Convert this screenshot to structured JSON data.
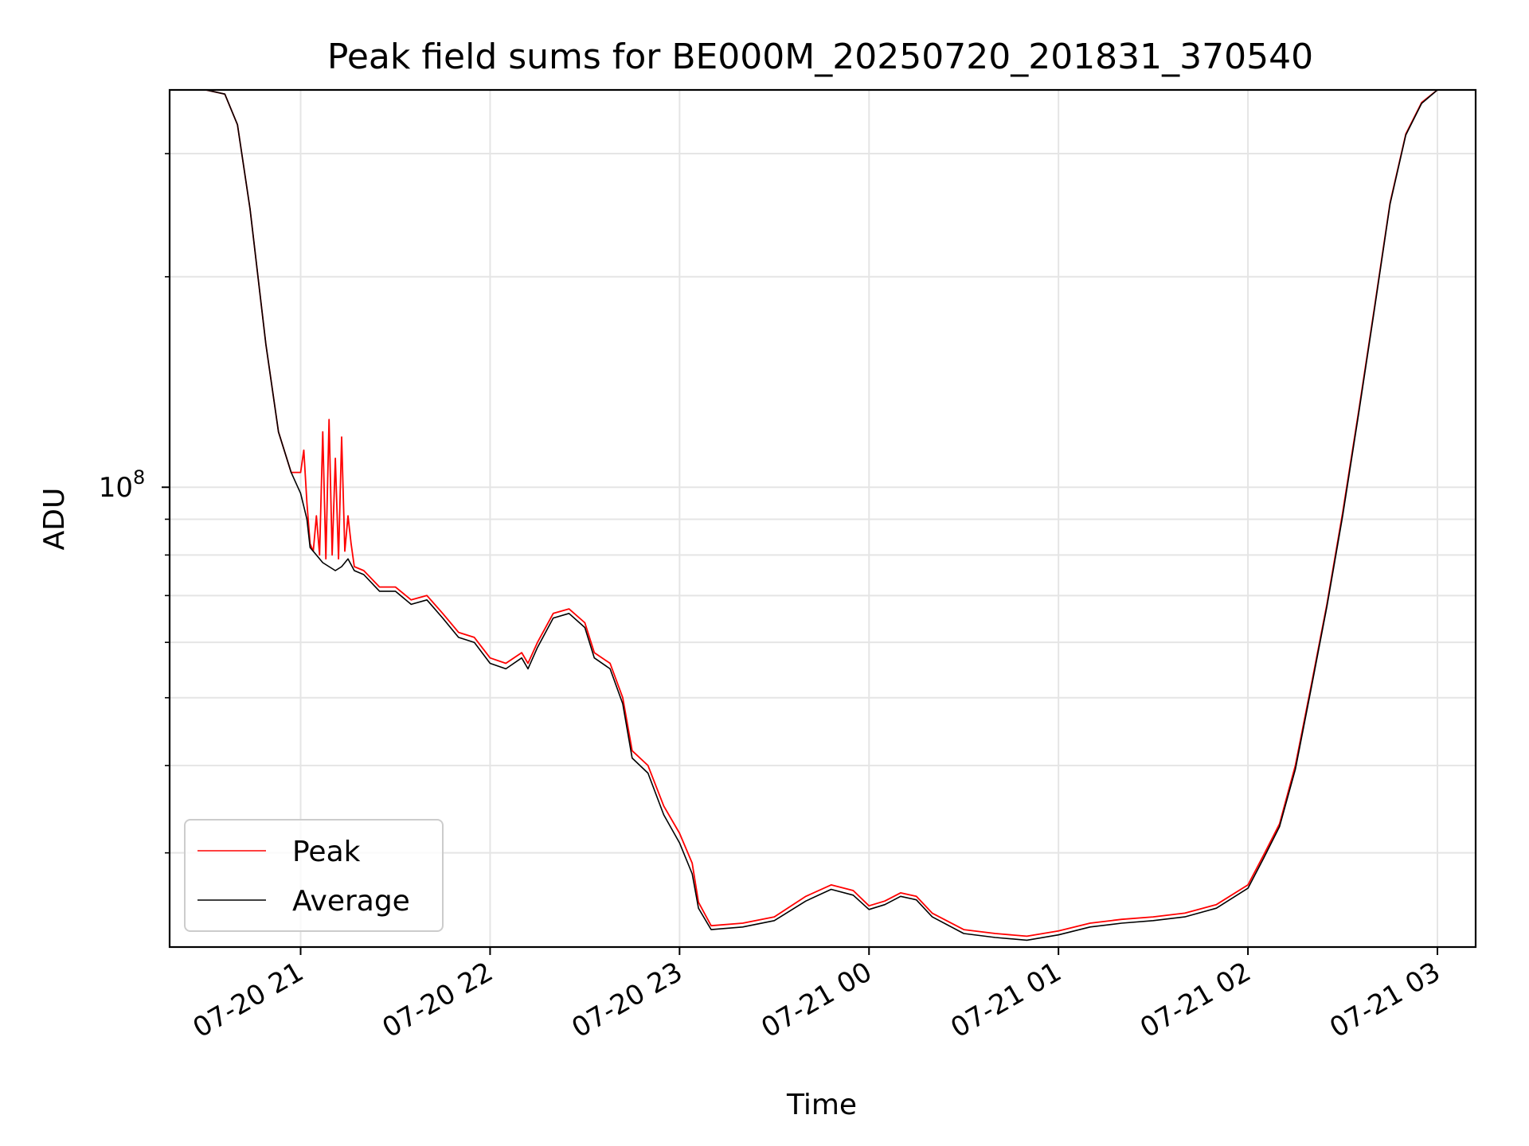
{
  "chart_data": {
    "type": "line",
    "title": "Peak field sums for BE000M_20250720_201831_370540",
    "xlabel": "Time",
    "ylabel": "ADU",
    "y_scale": "log",
    "ylim": [
      22000000,
      370000000
    ],
    "xlim": [
      "2025-07-20 20:18:31",
      "2025-07-21 03:00:00"
    ],
    "grid": true,
    "legend_position": "lower-left",
    "x_ticks": [
      {
        "t": "2025-07-20 21:00",
        "label": "07-20 21"
      },
      {
        "t": "2025-07-20 22:00",
        "label": "07-20 22"
      },
      {
        "t": "2025-07-20 23:00",
        "label": "07-20 23"
      },
      {
        "t": "2025-07-21 00:00",
        "label": "07-21 00"
      },
      {
        "t": "2025-07-21 01:00",
        "label": "07-21 01"
      },
      {
        "t": "2025-07-21 02:00",
        "label": "07-21 02"
      },
      {
        "t": "2025-07-21 03:00",
        "label": "07-21 03"
      }
    ],
    "y_major_ticks": [
      {
        "value": 100000000,
        "label_base": "10",
        "label_exp": "8"
      }
    ],
    "y_minor_ticks": [
      30000000,
      40000000,
      50000000,
      60000000,
      70000000,
      80000000,
      90000000,
      200000000,
      300000000
    ],
    "series": [
      {
        "name": "Peak",
        "color": "#ff0000",
        "points": [
          [
            "2025-07-20 20:18:31",
            370000000
          ],
          [
            "2025-07-20 20:30",
            370000000
          ],
          [
            "2025-07-20 20:36",
            365000000
          ],
          [
            "2025-07-20 20:40",
            330000000
          ],
          [
            "2025-07-20 20:44",
            250000000
          ],
          [
            "2025-07-20 20:49",
            160000000
          ],
          [
            "2025-07-20 20:53",
            120000000
          ],
          [
            "2025-07-20 20:57",
            105000000
          ],
          [
            "2025-07-20 21:00",
            105000000
          ],
          [
            "2025-07-20 21:01",
            113000000
          ],
          [
            "2025-07-20 21:02",
            95000000
          ],
          [
            "2025-07-20 21:03",
            83000000
          ],
          [
            "2025-07-20 21:04",
            81000000
          ],
          [
            "2025-07-20 21:05",
            91000000
          ],
          [
            "2025-07-20 21:06",
            80000000
          ],
          [
            "2025-07-20 21:07",
            120000000
          ],
          [
            "2025-07-20 21:08",
            79000000
          ],
          [
            "2025-07-20 21:09",
            125000000
          ],
          [
            "2025-07-20 21:10",
            80000000
          ],
          [
            "2025-07-20 21:11",
            110000000
          ],
          [
            "2025-07-20 21:12",
            79000000
          ],
          [
            "2025-07-20 21:13",
            118000000
          ],
          [
            "2025-07-20 21:14",
            81000000
          ],
          [
            "2025-07-20 21:15",
            91000000
          ],
          [
            "2025-07-20 21:16",
            83000000
          ],
          [
            "2025-07-20 21:17",
            77000000
          ],
          [
            "2025-07-20 21:20",
            76000000
          ],
          [
            "2025-07-20 21:25",
            72000000
          ],
          [
            "2025-07-20 21:30",
            72000000
          ],
          [
            "2025-07-20 21:35",
            69000000
          ],
          [
            "2025-07-20 21:40",
            70000000
          ],
          [
            "2025-07-20 21:45",
            66000000
          ],
          [
            "2025-07-20 21:50",
            62000000
          ],
          [
            "2025-07-20 21:55",
            61000000
          ],
          [
            "2025-07-20 22:00",
            57000000
          ],
          [
            "2025-07-20 22:05",
            56000000
          ],
          [
            "2025-07-20 22:10",
            58000000
          ],
          [
            "2025-07-20 22:12",
            56000000
          ],
          [
            "2025-07-20 22:15",
            60000000
          ],
          [
            "2025-07-20 22:20",
            66000000
          ],
          [
            "2025-07-20 22:25",
            67000000
          ],
          [
            "2025-07-20 22:30",
            64000000
          ],
          [
            "2025-07-20 22:33",
            58000000
          ],
          [
            "2025-07-20 22:38",
            56000000
          ],
          [
            "2025-07-20 22:42",
            50000000
          ],
          [
            "2025-07-20 22:45",
            42000000
          ],
          [
            "2025-07-20 22:50",
            40000000
          ],
          [
            "2025-07-20 22:55",
            35000000
          ],
          [
            "2025-07-20 23:00",
            32000000
          ],
          [
            "2025-07-20 23:04",
            29000000
          ],
          [
            "2025-07-20 23:06",
            25500000
          ],
          [
            "2025-07-20 23:10",
            23600000
          ],
          [
            "2025-07-20 23:20",
            23800000
          ],
          [
            "2025-07-20 23:30",
            24300000
          ],
          [
            "2025-07-20 23:40",
            26000000
          ],
          [
            "2025-07-20 23:48",
            27000000
          ],
          [
            "2025-07-20 23:55",
            26500000
          ],
          [
            "2025-07-21 00:00",
            25200000
          ],
          [
            "2025-07-21 00:05",
            25600000
          ],
          [
            "2025-07-21 00:10",
            26300000
          ],
          [
            "2025-07-21 00:15",
            26000000
          ],
          [
            "2025-07-21 00:20",
            24600000
          ],
          [
            "2025-07-21 00:30",
            23300000
          ],
          [
            "2025-07-21 00:40",
            23000000
          ],
          [
            "2025-07-21 00:50",
            22800000
          ],
          [
            "2025-07-21 01:00",
            23200000
          ],
          [
            "2025-07-21 01:10",
            23800000
          ],
          [
            "2025-07-21 01:20",
            24100000
          ],
          [
            "2025-07-21 01:30",
            24300000
          ],
          [
            "2025-07-21 01:40",
            24600000
          ],
          [
            "2025-07-21 01:50",
            25300000
          ],
          [
            "2025-07-21 02:00",
            27000000
          ],
          [
            "2025-07-21 02:05",
            29800000
          ],
          [
            "2025-07-21 02:10",
            33000000
          ],
          [
            "2025-07-21 02:15",
            40000000
          ],
          [
            "2025-07-21 02:20",
            52000000
          ],
          [
            "2025-07-21 02:25",
            68000000
          ],
          [
            "2025-07-21 02:30",
            92000000
          ],
          [
            "2025-07-21 02:35",
            128000000
          ],
          [
            "2025-07-21 02:40",
            180000000
          ],
          [
            "2025-07-21 02:45",
            255000000
          ],
          [
            "2025-07-21 02:50",
            320000000
          ],
          [
            "2025-07-21 02:55",
            355000000
          ],
          [
            "2025-07-21 03:00",
            370000000
          ]
        ]
      },
      {
        "name": "Average",
        "color": "#000000",
        "points": [
          [
            "2025-07-20 20:18:31",
            370000000
          ],
          [
            "2025-07-20 20:30",
            370000000
          ],
          [
            "2025-07-20 20:36",
            365000000
          ],
          [
            "2025-07-20 20:40",
            330000000
          ],
          [
            "2025-07-20 20:44",
            250000000
          ],
          [
            "2025-07-20 20:49",
            160000000
          ],
          [
            "2025-07-20 20:53",
            120000000
          ],
          [
            "2025-07-20 20:57",
            105000000
          ],
          [
            "2025-07-20 21:00",
            98000000
          ],
          [
            "2025-07-20 21:02",
            90000000
          ],
          [
            "2025-07-20 21:03",
            82000000
          ],
          [
            "2025-07-20 21:05",
            80000000
          ],
          [
            "2025-07-20 21:07",
            78000000
          ],
          [
            "2025-07-20 21:09",
            77000000
          ],
          [
            "2025-07-20 21:11",
            76000000
          ],
          [
            "2025-07-20 21:13",
            77000000
          ],
          [
            "2025-07-20 21:15",
            79000000
          ],
          [
            "2025-07-20 21:17",
            76000000
          ],
          [
            "2025-07-20 21:20",
            75000000
          ],
          [
            "2025-07-20 21:25",
            71000000
          ],
          [
            "2025-07-20 21:30",
            71000000
          ],
          [
            "2025-07-20 21:35",
            68000000
          ],
          [
            "2025-07-20 21:40",
            69000000
          ],
          [
            "2025-07-20 21:45",
            65000000
          ],
          [
            "2025-07-20 21:50",
            61000000
          ],
          [
            "2025-07-20 21:55",
            60000000
          ],
          [
            "2025-07-20 22:00",
            56000000
          ],
          [
            "2025-07-20 22:05",
            55000000
          ],
          [
            "2025-07-20 22:10",
            57000000
          ],
          [
            "2025-07-20 22:12",
            55000000
          ],
          [
            "2025-07-20 22:15",
            59000000
          ],
          [
            "2025-07-20 22:20",
            65000000
          ],
          [
            "2025-07-20 22:25",
            66000000
          ],
          [
            "2025-07-20 22:30",
            63000000
          ],
          [
            "2025-07-20 22:33",
            57000000
          ],
          [
            "2025-07-20 22:38",
            55000000
          ],
          [
            "2025-07-20 22:42",
            49000000
          ],
          [
            "2025-07-20 22:45",
            41000000
          ],
          [
            "2025-07-20 22:50",
            39000000
          ],
          [
            "2025-07-20 22:55",
            34000000
          ],
          [
            "2025-07-20 23:00",
            31000000
          ],
          [
            "2025-07-20 23:04",
            28000000
          ],
          [
            "2025-07-20 23:06",
            25000000
          ],
          [
            "2025-07-20 23:10",
            23300000
          ],
          [
            "2025-07-20 23:20",
            23500000
          ],
          [
            "2025-07-20 23:30",
            24000000
          ],
          [
            "2025-07-20 23:40",
            25600000
          ],
          [
            "2025-07-20 23:48",
            26600000
          ],
          [
            "2025-07-20 23:55",
            26100000
          ],
          [
            "2025-07-21 00:00",
            24900000
          ],
          [
            "2025-07-21 00:05",
            25300000
          ],
          [
            "2025-07-21 00:10",
            26000000
          ],
          [
            "2025-07-21 00:15",
            25700000
          ],
          [
            "2025-07-21 00:20",
            24300000
          ],
          [
            "2025-07-21 00:30",
            23000000
          ],
          [
            "2025-07-21 00:40",
            22700000
          ],
          [
            "2025-07-21 00:50",
            22500000
          ],
          [
            "2025-07-21 01:00",
            22900000
          ],
          [
            "2025-07-21 01:10",
            23500000
          ],
          [
            "2025-07-21 01:20",
            23800000
          ],
          [
            "2025-07-21 01:30",
            24000000
          ],
          [
            "2025-07-21 01:40",
            24300000
          ],
          [
            "2025-07-21 01:50",
            25000000
          ],
          [
            "2025-07-21 02:00",
            26700000
          ],
          [
            "2025-07-21 02:05",
            29500000
          ],
          [
            "2025-07-21 02:10",
            32700000
          ],
          [
            "2025-07-21 02:15",
            39500000
          ],
          [
            "2025-07-21 02:20",
            51500000
          ],
          [
            "2025-07-21 02:25",
            67500000
          ],
          [
            "2025-07-21 02:30",
            91000000
          ],
          [
            "2025-07-21 02:35",
            127000000
          ],
          [
            "2025-07-21 02:40",
            179000000
          ],
          [
            "2025-07-21 02:45",
            254000000
          ],
          [
            "2025-07-21 02:50",
            319000000
          ],
          [
            "2025-07-21 02:55",
            354000000
          ],
          [
            "2025-07-21 03:00",
            370000000
          ]
        ]
      }
    ]
  }
}
